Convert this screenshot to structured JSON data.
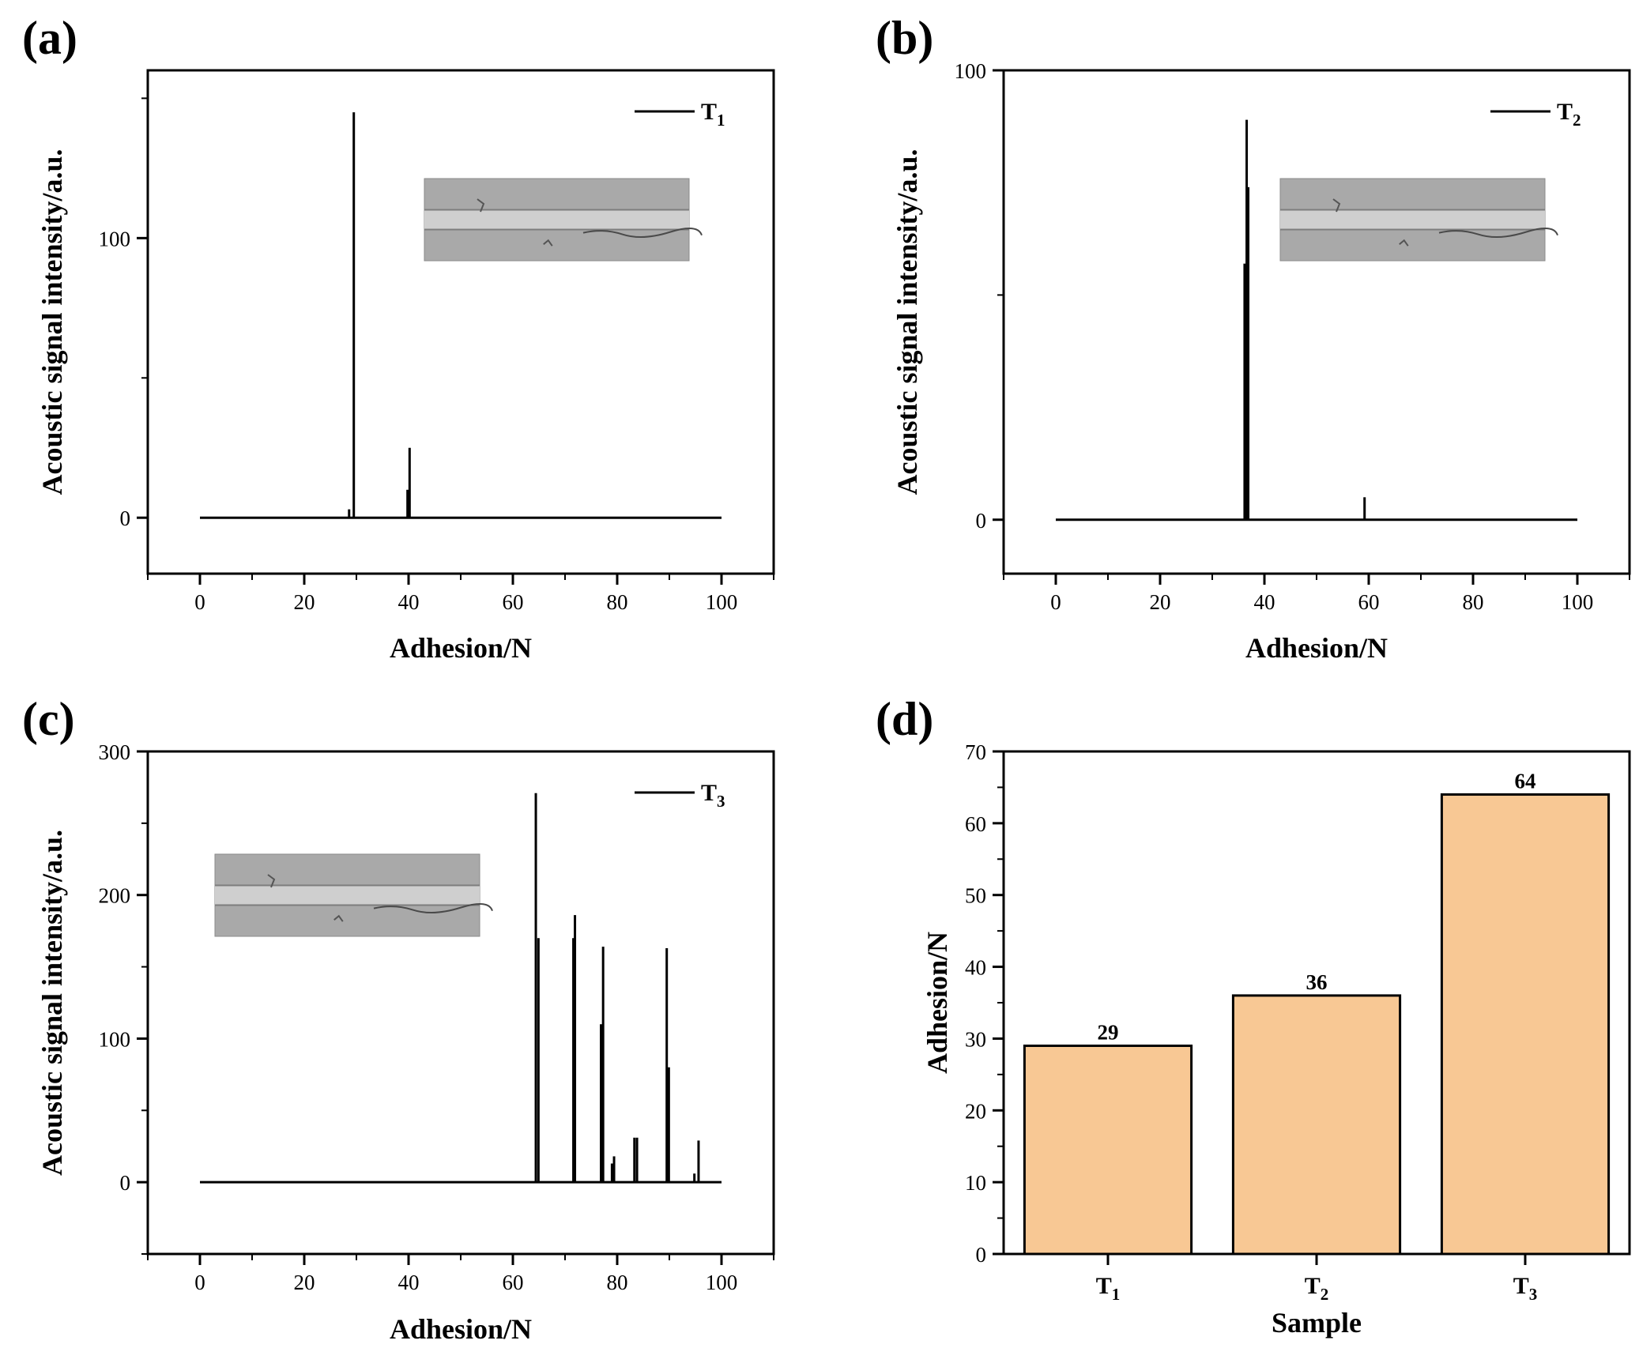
{
  "colors": {
    "line": "#000000",
    "bar_fill": "#f8c894",
    "bar_stroke": "#000000",
    "inset_bg": "#a9a9a9",
    "inset_track": "#cfcfcf"
  },
  "chart_data": [
    {
      "panel": "(a)",
      "type": "line",
      "xlabel": "Adhesion/N",
      "ylabel": "Acoustic signal intensity/a.u.",
      "xlim": [
        -10,
        110
      ],
      "ylim": [
        -20,
        160
      ],
      "xticks": [
        0,
        20,
        40,
        60,
        80,
        100
      ],
      "yticks": [
        0,
        100
      ],
      "legend": {
        "main": "T",
        "sub": "1",
        "position": "top-right"
      },
      "baseline": 0,
      "x_start": 0,
      "x_end": 100,
      "spikes": [
        {
          "x": 28.6,
          "y": 3
        },
        {
          "x": 29.5,
          "y": 145
        },
        {
          "x": 39.8,
          "y": 10
        },
        {
          "x": 40.2,
          "y": 25
        }
      ],
      "inset": {
        "description": "scratch track micrograph",
        "position": "top-right"
      }
    },
    {
      "panel": "(b)",
      "type": "line",
      "xlabel": "Adhesion/N",
      "ylabel": "Acoustic signal intensity/a.u.",
      "xlim": [
        -10,
        110
      ],
      "ylim": [
        -12,
        100
      ],
      "xticks": [
        0,
        20,
        40,
        60,
        80,
        100
      ],
      "yticks": [
        0,
        100
      ],
      "legend": {
        "main": "T",
        "sub": "2",
        "position": "top-right"
      },
      "baseline": 0,
      "x_start": 0,
      "x_end": 100,
      "spikes": [
        {
          "x": 36.2,
          "y": 57
        },
        {
          "x": 36.6,
          "y": 89
        },
        {
          "x": 36.9,
          "y": 74
        },
        {
          "x": 59.2,
          "y": 5
        }
      ],
      "inset": {
        "description": "scratch track micrograph",
        "position": "top-right"
      }
    },
    {
      "panel": "(c)",
      "type": "line",
      "xlabel": "Adhesion/N",
      "ylabel": "Acoustic signal intensity/a.u.",
      "xlim": [
        -10,
        110
      ],
      "ylim": [
        -50,
        300
      ],
      "xticks": [
        0,
        20,
        40,
        60,
        80,
        100
      ],
      "yticks": [
        0,
        100,
        200,
        300
      ],
      "legend": {
        "main": "T",
        "sub": "3",
        "position": "top-right"
      },
      "baseline": 0,
      "x_start": 0,
      "x_end": 100,
      "spikes": [
        {
          "x": 64.4,
          "y": 271
        },
        {
          "x": 64.9,
          "y": 170
        },
        {
          "x": 71.6,
          "y": 170
        },
        {
          "x": 71.9,
          "y": 186
        },
        {
          "x": 76.9,
          "y": 110
        },
        {
          "x": 77.3,
          "y": 164
        },
        {
          "x": 79.0,
          "y": 13
        },
        {
          "x": 79.4,
          "y": 18
        },
        {
          "x": 83.3,
          "y": 31
        },
        {
          "x": 83.8,
          "y": 31
        },
        {
          "x": 89.5,
          "y": 163
        },
        {
          "x": 89.9,
          "y": 80
        },
        {
          "x": 94.8,
          "y": 6
        },
        {
          "x": 95.6,
          "y": 29
        }
      ],
      "inset": {
        "description": "scratch track micrograph",
        "position": "top-left"
      }
    },
    {
      "panel": "(d)",
      "type": "bar",
      "xlabel": "Sample",
      "ylabel": "Adhesion/N",
      "ylim": [
        0,
        70
      ],
      "yticks": [
        0,
        10,
        20,
        30,
        40,
        50,
        60,
        70
      ],
      "categories": [
        {
          "main": "T",
          "sub": "1"
        },
        {
          "main": "T",
          "sub": "2"
        },
        {
          "main": "T",
          "sub": "3"
        }
      ],
      "values": [
        29,
        36,
        64
      ],
      "data_labels": [
        "29",
        "36",
        "64"
      ]
    }
  ]
}
